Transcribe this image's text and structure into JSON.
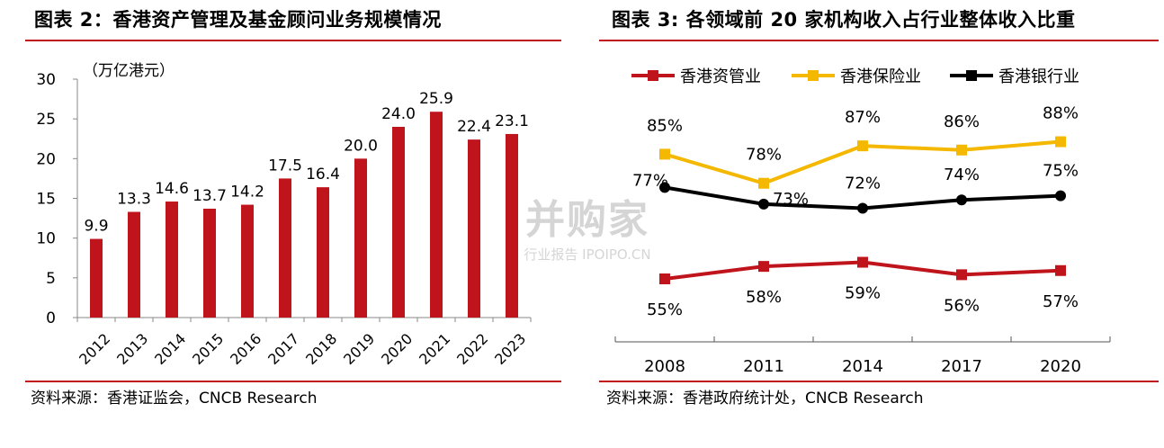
{
  "left": {
    "title": "图表 2：香港资产管理及基金顾问业务规模情况",
    "source": "资料来源：香港证监会，CNCB Research",
    "chart_data": {
      "type": "bar",
      "unit_label": "（万亿港元）",
      "categories": [
        "2012",
        "2013",
        "2014",
        "2015",
        "2016",
        "2017",
        "2018",
        "2019",
        "2020",
        "2021",
        "2022",
        "2023"
      ],
      "values": [
        9.9,
        13.3,
        14.6,
        13.7,
        14.2,
        17.5,
        16.4,
        20.0,
        24.0,
        25.9,
        22.4,
        23.1
      ],
      "data_labels": [
        "9.9",
        "13.3",
        "14.6",
        "13.7",
        "14.2",
        "17.5",
        "16.4",
        "20.0",
        "24.0",
        "25.9",
        "22.4",
        "23.1"
      ],
      "ylim": [
        0,
        30
      ],
      "yticks": [
        0,
        5,
        10,
        15,
        20,
        25,
        30
      ],
      "color": "#c0141c",
      "grid": false
    }
  },
  "right": {
    "title": "图表 3: 各领域前 20 家机构收入占行业整体收入比重",
    "source": "资料来源：香港政府统计处，CNCB Research",
    "chart_data": {
      "type": "line",
      "categories": [
        "2008",
        "2011",
        "2014",
        "2017",
        "2020"
      ],
      "legend_position": "top",
      "series": [
        {
          "name": "香港资管业",
          "color": "#c0141c",
          "values": [
            55,
            58,
            59,
            56,
            57
          ],
          "labels": [
            "55%",
            "58%",
            "59%",
            "56%",
            "57%"
          ]
        },
        {
          "name": "香港保险业",
          "color": "#f5b800",
          "values": [
            85,
            78,
            87,
            86,
            88
          ],
          "labels": [
            "85%",
            "78%",
            "87%",
            "86%",
            "88%"
          ]
        },
        {
          "name": "香港银行业",
          "color": "#000000",
          "values": [
            77,
            73,
            72,
            74,
            75
          ],
          "labels": [
            "77%",
            "73%",
            "72%",
            "74%",
            "75%"
          ]
        }
      ],
      "grid": false
    }
  },
  "watermark": {
    "text": "并购家",
    "subtext": "行业报告 IPOIPO.CN"
  }
}
